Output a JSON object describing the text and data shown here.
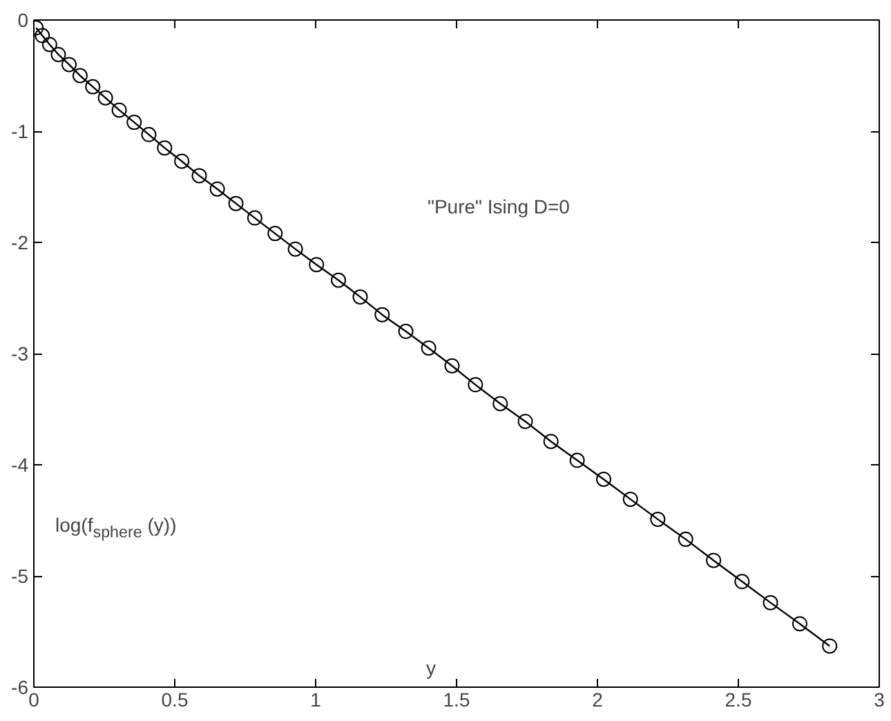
{
  "chart_data": {
    "type": "line",
    "xlabel": "y",
    "ylabel": "log(f$_{sphere}$ (y))",
    "annotations": [
      "\"Pure\" Ising D=0"
    ],
    "x": [
      0.008,
      0.03,
      0.056,
      0.087,
      0.125,
      0.164,
      0.209,
      0.254,
      0.303,
      0.356,
      0.408,
      0.464,
      0.525,
      0.587,
      0.651,
      0.717,
      0.784,
      0.856,
      0.928,
      1.003,
      1.081,
      1.158,
      1.236,
      1.32,
      1.401,
      1.484,
      1.567,
      1.655,
      1.744,
      1.835,
      1.928,
      2.022,
      2.117,
      2.214,
      2.313,
      2.412,
      2.513,
      2.614,
      2.718,
      2.824
    ],
    "series": [
      {
        "color": "#000000",
        "marker": "circle",
        "values": [
          -0.07,
          -0.14,
          -0.22,
          -0.31,
          -0.4,
          -0.5,
          -0.6,
          -0.7,
          -0.81,
          -0.92,
          -1.03,
          -1.15,
          -1.27,
          -1.4,
          -1.52,
          -1.65,
          -1.78,
          -1.92,
          -2.06,
          -2.2,
          -2.34,
          -2.49,
          -2.65,
          -2.8,
          -2.95,
          -3.11,
          -3.28,
          -3.45,
          -3.61,
          -3.79,
          -3.96,
          -4.13,
          -4.31,
          -4.49,
          -4.67,
          -4.86,
          -5.05,
          -5.24,
          -5.43,
          -5.63
        ]
      }
    ],
    "xlim": [
      0,
      3
    ],
    "ylim": [
      -6,
      0
    ],
    "xticks": [
      0,
      0.5,
      1,
      1.5,
      2,
      2.5,
      3
    ],
    "yticks": [
      -6,
      -5,
      -4,
      -3,
      -2,
      -1,
      0
    ],
    "grid": false
  }
}
